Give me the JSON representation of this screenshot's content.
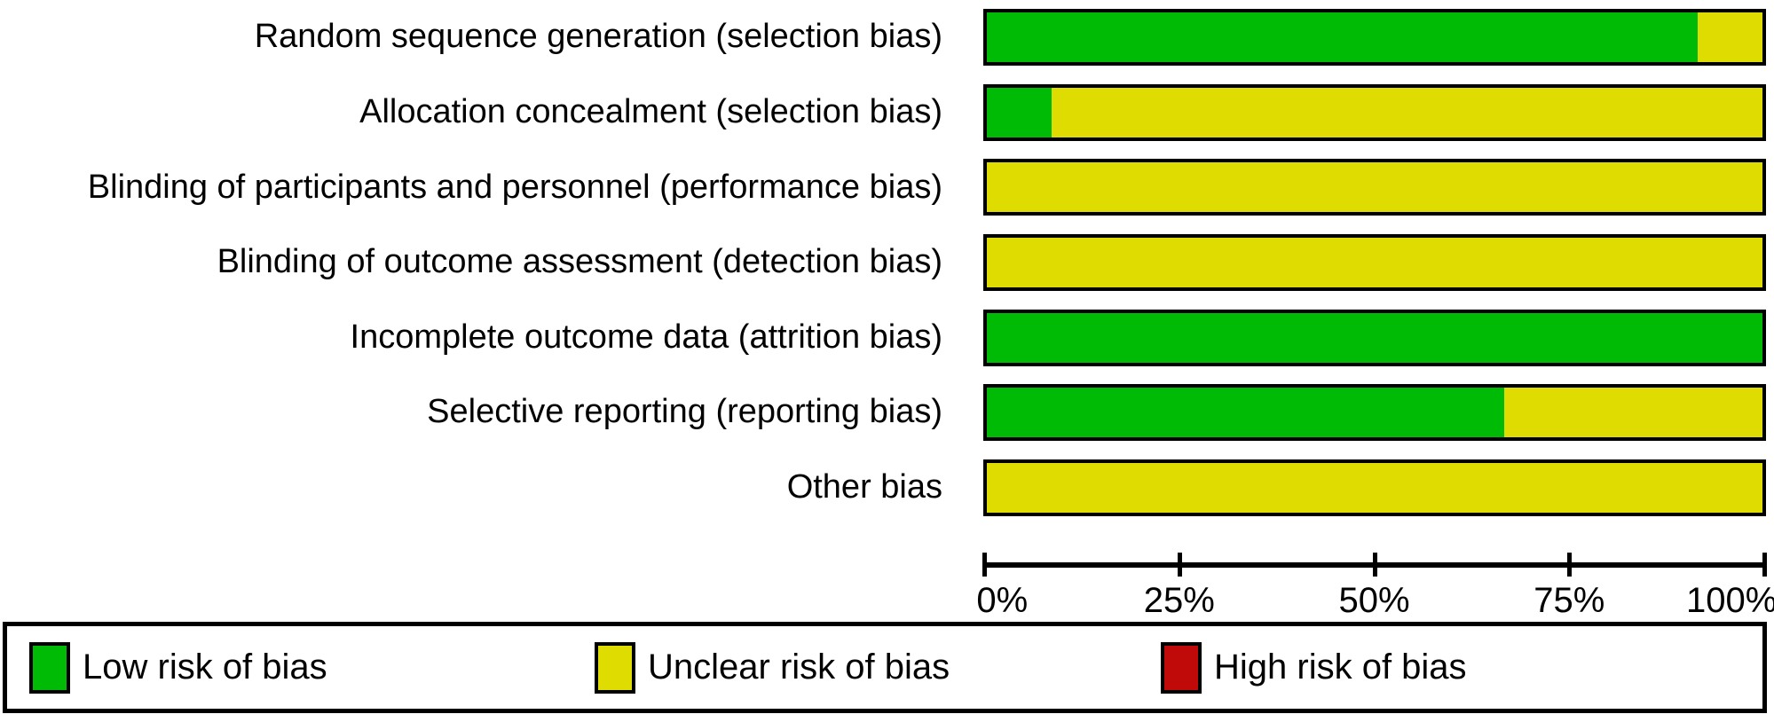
{
  "chart_data": {
    "type": "bar",
    "orientation": "horizontal",
    "stacked": true,
    "unit": "percent",
    "title": "",
    "xlabel": "",
    "ylabel": "",
    "xlim": [
      0,
      100
    ],
    "grid": false,
    "legend_position": "bottom",
    "categories": [
      "Random sequence generation (selection bias)",
      "Allocation concealment (selection bias)",
      "Blinding of participants and personnel (performance bias)",
      "Blinding of outcome assessment (detection bias)",
      "Incomplete outcome data (attrition bias)",
      "Selective reporting (reporting bias)",
      "Other bias"
    ],
    "series": [
      {
        "name": "Low risk of bias",
        "color": "#00bb06",
        "values": [
          91.7,
          8.3,
          0,
          0,
          100,
          66.7,
          0
        ]
      },
      {
        "name": "Unclear risk of bias",
        "color": "#dedc00",
        "values": [
          8.3,
          91.7,
          100,
          100,
          0,
          33.3,
          100
        ]
      },
      {
        "name": "High risk of bias",
        "color": "#c00a0a",
        "values": [
          0,
          0,
          0,
          0,
          0,
          0,
          0
        ]
      }
    ],
    "x_ticks": [
      "0%",
      "25%",
      "50%",
      "75%",
      "100%"
    ]
  },
  "colors": {
    "low_risk": "#00bb06",
    "unclear_risk": "#dedc00",
    "high_risk": "#c00a0a",
    "bar_border": "#000000",
    "text": "#000000",
    "background": "#ffffff"
  }
}
